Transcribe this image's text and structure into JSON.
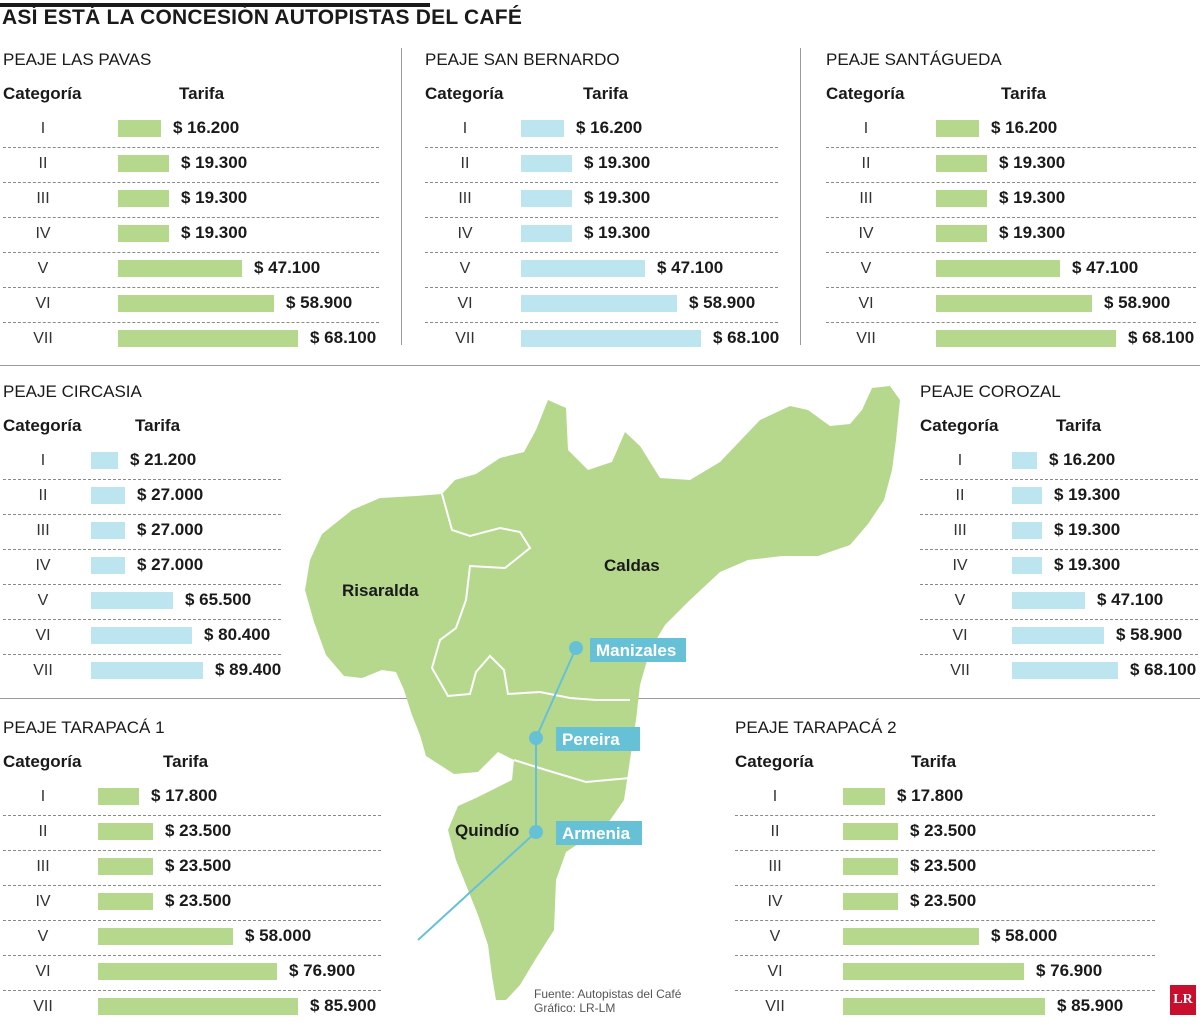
{
  "title": "ASÍ ESTÁ LA CONCESIÓN AUTOPISTAS DEL CAFÉ",
  "header_categoria": "Categoría",
  "header_tarifa": "Tarifa",
  "colors": {
    "green": "#b5d88d",
    "blue": "#bde5ef",
    "map_green": "#b5d88d",
    "route": "#67c1d6",
    "city_label_bg": "#67c1d6"
  },
  "map": {
    "regions": [
      "Risaralda",
      "Caldas",
      "Quindío"
    ],
    "cities": [
      "Manizales",
      "Pereira",
      "Armenia"
    ]
  },
  "footer": {
    "source": "Fuente: Autopistas del Café",
    "graphic": "Gráfico: LR-LM"
  },
  "logo_text": "LR",
  "chart_data": [
    {
      "type": "bar",
      "title": "PEAJE LAS PAVAS",
      "categories": [
        "I",
        "II",
        "III",
        "IV",
        "V",
        "VI",
        "VII"
      ],
      "labels": [
        "$ 16.200",
        "$ 19.300",
        "$ 19.300",
        "$ 19.300",
        "$ 47.100",
        "$ 58.900",
        "$ 68.100"
      ],
      "values": [
        16200,
        19300,
        19300,
        19300,
        47100,
        58900,
        68100
      ],
      "color": "#b5d88d"
    },
    {
      "type": "bar",
      "title": "PEAJE SAN BERNARDO",
      "categories": [
        "I",
        "II",
        "III",
        "IV",
        "V",
        "VI",
        "VII"
      ],
      "labels": [
        "$ 16.200",
        "$ 19.300",
        "$ 19.300",
        "$ 19.300",
        "$ 47.100",
        "$ 58.900",
        "$ 68.100"
      ],
      "values": [
        16200,
        19300,
        19300,
        19300,
        47100,
        58900,
        68100
      ],
      "color": "#bde5ef"
    },
    {
      "type": "bar",
      "title": "PEAJE SANTÁGUEDA",
      "categories": [
        "I",
        "II",
        "III",
        "IV",
        "V",
        "VI",
        "VII"
      ],
      "labels": [
        "$ 16.200",
        "$ 19.300",
        "$ 19.300",
        "$ 19.300",
        "$ 47.100",
        "$ 58.900",
        "$ 68.100"
      ],
      "values": [
        16200,
        19300,
        19300,
        19300,
        47100,
        58900,
        68100
      ],
      "color": "#b5d88d"
    },
    {
      "type": "bar",
      "title": "PEAJE CIRCASIA",
      "categories": [
        "I",
        "II",
        "III",
        "IV",
        "V",
        "VI",
        "VII"
      ],
      "labels": [
        "$ 21.200",
        "$ 27.000",
        "$ 27.000",
        "$ 27.000",
        "$ 65.500",
        "$ 80.400",
        "$ 89.400"
      ],
      "values": [
        21200,
        27000,
        27000,
        27000,
        65500,
        80400,
        89400
      ],
      "color": "#bde5ef"
    },
    {
      "type": "bar",
      "title": "PEAJE COROZAL",
      "categories": [
        "I",
        "II",
        "III",
        "IV",
        "V",
        "VI",
        "VII"
      ],
      "labels": [
        "$ 16.200",
        "$ 19.300",
        "$ 19.300",
        "$ 19.300",
        "$ 47.100",
        "$ 58.900",
        "$ 68.100"
      ],
      "values": [
        16200,
        19300,
        19300,
        19300,
        47100,
        58900,
        68100
      ],
      "color": "#bde5ef"
    },
    {
      "type": "bar",
      "title": "PEAJE TARAPACÁ 1",
      "categories": [
        "I",
        "II",
        "III",
        "IV",
        "V",
        "VI",
        "VII"
      ],
      "labels": [
        "$ 17.800",
        "$ 23.500",
        "$ 23.500",
        "$ 23.500",
        "$ 58.000",
        "$ 76.900",
        "$ 85.900"
      ],
      "values": [
        17800,
        23500,
        23500,
        23500,
        58000,
        76900,
        85900
      ],
      "color": "#b5d88d"
    },
    {
      "type": "bar",
      "title": "PEAJE TARAPACÁ 2",
      "categories": [
        "I",
        "II",
        "III",
        "IV",
        "V",
        "VI",
        "VII"
      ],
      "labels": [
        "$ 17.800",
        "$ 23.500",
        "$ 23.500",
        "$ 23.500",
        "$ 58.000",
        "$ 76.900",
        "$ 85.900"
      ],
      "values": [
        17800,
        23500,
        23500,
        23500,
        58000,
        76900,
        85900
      ],
      "color": "#b5d88d"
    }
  ]
}
